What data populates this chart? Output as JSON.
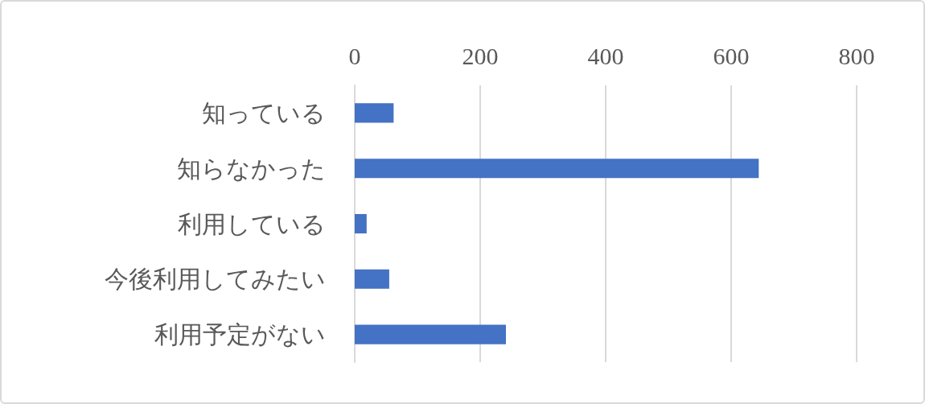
{
  "chart_data": {
    "type": "bar",
    "orientation": "horizontal",
    "categories": [
      "知っている",
      "知らなかった",
      "利用している",
      "今後利用してみたい",
      "利用予定がない"
    ],
    "values": [
      62,
      644,
      19,
      55,
      241
    ],
    "color": "#4472c4",
    "xlim": [
      0,
      800
    ],
    "xticks": [
      0,
      200,
      400,
      600,
      800
    ],
    "grid": "x"
  }
}
